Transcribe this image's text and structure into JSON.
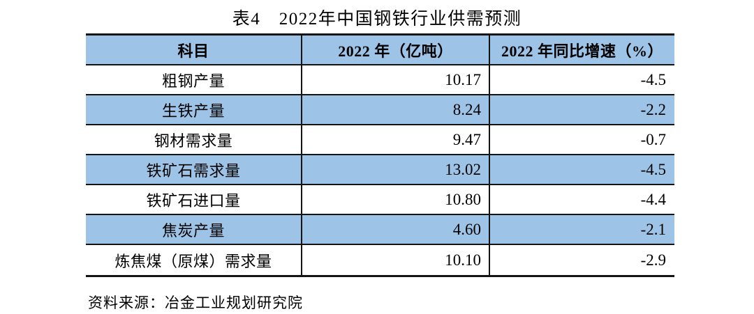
{
  "title": "表4　2022年中国钢铁行业供需预测",
  "table": {
    "headers": [
      "科目",
      "2022 年（亿吨）",
      "2022 年同比增速（%）"
    ],
    "rows": [
      {
        "item": "粗钢产量",
        "value": "10.17",
        "growth": "-4.5"
      },
      {
        "item": "生铁产量",
        "value": "8.24",
        "growth": "-2.2"
      },
      {
        "item": "钢材需求量",
        "value": "9.47",
        "growth": "-0.7"
      },
      {
        "item": "铁矿石需求量",
        "value": "13.02",
        "growth": "-4.5"
      },
      {
        "item": "铁矿石进口量",
        "value": "10.80",
        "growth": "-4.4"
      },
      {
        "item": "焦炭产量",
        "value": "4.60",
        "growth": "-2.1"
      },
      {
        "item": "炼焦煤（原煤）需求量",
        "value": "10.10",
        "growth": "-2.9"
      }
    ]
  },
  "source_note": "资料来源：冶金工业规划研究院",
  "colors": {
    "stripe_blue": "#9DC3E6",
    "border_black": "#141414",
    "text_black": "#000000",
    "background": "#ffffff"
  }
}
